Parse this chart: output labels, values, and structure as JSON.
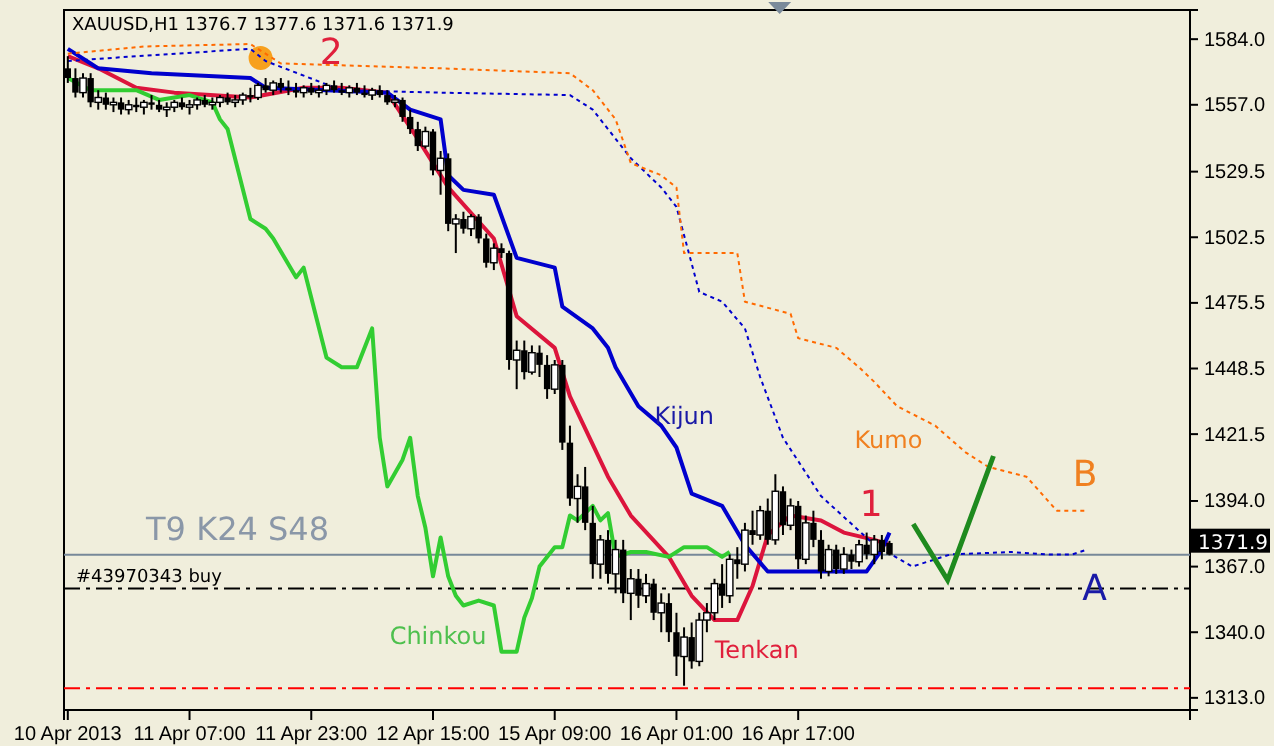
{
  "chart_data": {
    "type": "candlestick",
    "title": "XAUUSD,H1  1376.7 1377.6 1371.6 1371.9",
    "categories": [
      "10 Apr 2013",
      null,
      null,
      null,
      null,
      null,
      null,
      null,
      null,
      null,
      null,
      null,
      null,
      null,
      null,
      null,
      "11 Apr 07:00",
      null,
      null,
      null,
      null,
      null,
      null,
      null,
      null,
      null,
      null,
      null,
      null,
      null,
      null,
      null,
      "11 Apr 23:00",
      null,
      null,
      null,
      null,
      null,
      null,
      null,
      null,
      null,
      null,
      null,
      null,
      null,
      null,
      null,
      "12 Apr 15:00",
      null,
      null,
      null,
      null,
      null,
      null,
      null,
      null,
      null,
      null,
      null,
      null,
      null,
      null,
      null,
      "15 Apr 09:00",
      null,
      null,
      null,
      null,
      null,
      null,
      null,
      null,
      null,
      null,
      null,
      null,
      null,
      null,
      null,
      "16 Apr 01:00",
      null,
      null,
      null,
      null,
      null,
      null,
      null,
      null,
      null,
      null,
      null,
      null,
      null,
      null,
      null,
      "16 Apr 17:00",
      null,
      null,
      null,
      null,
      null,
      null,
      null,
      null,
      null,
      null,
      null,
      null,
      null,
      null,
      null,
      null,
      null,
      null,
      null,
      null,
      null,
      null,
      null,
      null,
      null,
      null,
      null,
      null,
      null,
      null,
      null,
      null,
      null,
      null,
      null,
      null,
      null,
      null,
      null,
      null,
      null,
      null,
      null,
      null,
      null,
      null,
      null,
      null,
      null,
      null,
      null
    ],
    "ohlc": [
      [
        1572,
        1577,
        1566,
        1568
      ],
      [
        1568,
        1572,
        1560,
        1562
      ],
      [
        1562,
        1570,
        1560,
        1568
      ],
      [
        1568,
        1570,
        1556,
        1558
      ],
      [
        1558,
        1563,
        1555,
        1560
      ],
      [
        1560,
        1562,
        1555,
        1557
      ],
      [
        1557,
        1560,
        1554,
        1558
      ],
      [
        1558,
        1560,
        1553,
        1555
      ],
      [
        1555,
        1559,
        1553,
        1557
      ],
      [
        1557,
        1560,
        1554,
        1556
      ],
      [
        1556,
        1559,
        1553,
        1558
      ],
      [
        1558,
        1561,
        1555,
        1557
      ],
      [
        1557,
        1559,
        1554,
        1555
      ],
      [
        1555,
        1558,
        1552,
        1556
      ],
      [
        1556,
        1559,
        1554,
        1558
      ],
      [
        1558,
        1560,
        1555,
        1556
      ],
      [
        1556,
        1559,
        1553,
        1557
      ],
      [
        1557,
        1560,
        1555,
        1559
      ],
      [
        1559,
        1561,
        1556,
        1557
      ],
      [
        1557,
        1560,
        1555,
        1558
      ],
      [
        1558,
        1561,
        1556,
        1560
      ],
      [
        1560,
        1562,
        1557,
        1558
      ],
      [
        1558,
        1561,
        1556,
        1559
      ],
      [
        1559,
        1562,
        1557,
        1561
      ],
      [
        1561,
        1564,
        1558,
        1560
      ],
      [
        1560,
        1566,
        1559,
        1565
      ],
      [
        1565,
        1568,
        1562,
        1563
      ],
      [
        1563,
        1567,
        1561,
        1566
      ],
      [
        1566,
        1568,
        1562,
        1564
      ],
      [
        1564,
        1567,
        1561,
        1563
      ],
      [
        1563,
        1566,
        1560,
        1562
      ],
      [
        1562,
        1565,
        1560,
        1564
      ],
      [
        1564,
        1566,
        1561,
        1562
      ],
      [
        1562,
        1565,
        1560,
        1563
      ],
      [
        1563,
        1566,
        1561,
        1565
      ],
      [
        1565,
        1567,
        1562,
        1563
      ],
      [
        1563,
        1566,
        1561,
        1562
      ],
      [
        1562,
        1565,
        1560,
        1564
      ],
      [
        1564,
        1566,
        1561,
        1562
      ],
      [
        1562,
        1565,
        1560,
        1561
      ],
      [
        1561,
        1564,
        1559,
        1563
      ],
      [
        1563,
        1565,
        1560,
        1561
      ],
      [
        1561,
        1563,
        1557,
        1558
      ],
      [
        1558,
        1561,
        1556,
        1559
      ],
      [
        1559,
        1560,
        1550,
        1552
      ],
      [
        1552,
        1555,
        1545,
        1547
      ],
      [
        1547,
        1550,
        1538,
        1540
      ],
      [
        1540,
        1548,
        1539,
        1546
      ],
      [
        1546,
        1547,
        1528,
        1530
      ],
      [
        1530,
        1538,
        1520,
        1535
      ],
      [
        1535,
        1537,
        1505,
        1508
      ],
      [
        1508,
        1512,
        1496,
        1510
      ],
      [
        1510,
        1513,
        1504,
        1506
      ],
      [
        1506,
        1512,
        1503,
        1511
      ],
      [
        1511,
        1512,
        1500,
        1502
      ],
      [
        1502,
        1504,
        1490,
        1492
      ],
      [
        1492,
        1500,
        1489,
        1498
      ],
      [
        1498,
        1500,
        1494,
        1496
      ],
      [
        1496,
        1497,
        1448,
        1452
      ],
      [
        1452,
        1460,
        1440,
        1456
      ],
      [
        1456,
        1460,
        1444,
        1447
      ],
      [
        1447,
        1458,
        1446,
        1455
      ],
      [
        1455,
        1458,
        1445,
        1450
      ],
      [
        1450,
        1454,
        1436,
        1440
      ],
      [
        1440,
        1452,
        1438,
        1450
      ],
      [
        1450,
        1452,
        1415,
        1418
      ],
      [
        1418,
        1425,
        1392,
        1395
      ],
      [
        1395,
        1405,
        1385,
        1400
      ],
      [
        1400,
        1408,
        1382,
        1385
      ],
      [
        1385,
        1392,
        1362,
        1368
      ],
      [
        1368,
        1380,
        1362,
        1378
      ],
      [
        1378,
        1382,
        1360,
        1364
      ],
      [
        1364,
        1378,
        1356,
        1374
      ],
      [
        1374,
        1378,
        1352,
        1356
      ],
      [
        1356,
        1366,
        1345,
        1362
      ],
      [
        1362,
        1366,
        1350,
        1355
      ],
      [
        1355,
        1364,
        1352,
        1360
      ],
      [
        1360,
        1362,
        1345,
        1348
      ],
      [
        1348,
        1356,
        1340,
        1352
      ],
      [
        1352,
        1356,
        1336,
        1340
      ],
      [
        1340,
        1348,
        1322,
        1330
      ],
      [
        1330,
        1342,
        1318,
        1338
      ],
      [
        1338,
        1344,
        1325,
        1328
      ],
      [
        1328,
        1348,
        1326,
        1345
      ],
      [
        1345,
        1352,
        1340,
        1348
      ],
      [
        1348,
        1362,
        1345,
        1360
      ],
      [
        1360,
        1368,
        1350,
        1355
      ],
      [
        1355,
        1372,
        1352,
        1370
      ],
      [
        1370,
        1375,
        1362,
        1368
      ],
      [
        1368,
        1385,
        1365,
        1382
      ],
      [
        1382,
        1390,
        1376,
        1380
      ],
      [
        1380,
        1392,
        1378,
        1390
      ],
      [
        1390,
        1395,
        1376,
        1378
      ],
      [
        1378,
        1405,
        1376,
        1398
      ],
      [
        1398,
        1400,
        1380,
        1384
      ],
      [
        1384,
        1395,
        1382,
        1392
      ],
      [
        1392,
        1394,
        1366,
        1370
      ],
      [
        1370,
        1388,
        1368,
        1385
      ],
      [
        1385,
        1390,
        1375,
        1378
      ],
      [
        1378,
        1382,
        1362,
        1365
      ],
      [
        1365,
        1376,
        1363,
        1374
      ],
      [
        1374,
        1376,
        1364,
        1366
      ],
      [
        1366,
        1375,
        1364,
        1372
      ],
      [
        1372,
        1374,
        1366,
        1369
      ],
      [
        1369,
        1378,
        1367,
        1376
      ],
      [
        1376,
        1381,
        1370,
        1372
      ],
      [
        1372,
        1380,
        1368,
        1378
      ],
      [
        1378,
        1380,
        1370,
        1373
      ],
      [
        1376.7,
        1377.6,
        1371.6,
        1371.9
      ],
      null,
      null,
      null,
      null,
      null,
      null,
      null,
      null,
      null,
      null,
      null,
      null,
      null,
      null,
      null,
      null,
      null,
      null,
      null,
      null,
      null,
      null,
      null,
      null,
      null,
      null,
      null,
      null,
      null,
      null,
      null,
      null,
      null,
      null,
      null,
      null,
      null,
      null,
      null
    ],
    "series": [
      {
        "type": "line",
        "color": "#dc143c",
        "values": [
          1577,
          null,
          null,
          null,
          1572,
          null,
          null,
          null,
          null,
          1564,
          null,
          null,
          null,
          null,
          1562,
          null,
          null,
          null,
          null,
          null,
          null,
          null,
          null,
          null,
          1560,
          null,
          null,
          null,
          null,
          null,
          null,
          1564,
          null,
          null,
          null,
          null,
          1564,
          null,
          null,
          null,
          null,
          null,
          1562,
          null,
          null,
          null,
          1543,
          null,
          null,
          null,
          1523,
          null,
          null,
          null,
          null,
          null,
          1502,
          null,
          null,
          1470,
          null,
          null,
          null,
          null,
          1457,
          null,
          1437,
          null,
          null,
          null,
          null,
          1404,
          null,
          null,
          1388,
          null,
          null,
          null,
          null,
          1371,
          null,
          null,
          1355,
          null,
          null,
          1345,
          null,
          null,
          1345,
          null,
          1359,
          null,
          1380,
          null,
          null,
          1388,
          null,
          null,
          null,
          1386,
          null,
          null,
          1381,
          null,
          null,
          null,
          1378,
          null,
          1376,
          null,
          null,
          null,
          null,
          null,
          null,
          null,
          null,
          null,
          null,
          null,
          null,
          null,
          null,
          null,
          null,
          null,
          null,
          null,
          null,
          null,
          null,
          null,
          null,
          null,
          null,
          null,
          null,
          null,
          null,
          null,
          null,
          null,
          null,
          null,
          null,
          null,
          null,
          null
        ]
      },
      {
        "type": "line",
        "color": "#0000cd",
        "values": [
          1580,
          null,
          null,
          1574,
          1572,
          null,
          null,
          null,
          null,
          null,
          null,
          1570,
          null,
          null,
          null,
          null,
          null,
          null,
          null,
          null,
          null,
          null,
          null,
          null,
          1568,
          null,
          1564,
          null,
          null,
          null,
          null,
          null,
          null,
          null,
          null,
          null,
          null,
          null,
          null,
          null,
          null,
          null,
          1562,
          null,
          null,
          1555,
          null,
          null,
          null,
          1551,
          1528,
          null,
          1522,
          null,
          null,
          null,
          1520,
          null,
          null,
          1494,
          null,
          null,
          null,
          null,
          1490,
          1474,
          null,
          null,
          null,
          1465,
          null,
          1457,
          1449,
          null,
          null,
          1433,
          null,
          null,
          1425,
          null,
          1416,
          null,
          1397,
          null,
          null,
          null,
          1392,
          null,
          null,
          1376,
          null,
          null,
          1365,
          null,
          null,
          null,
          null,
          null,
          null,
          null,
          null,
          null,
          null,
          null,
          null,
          1365,
          null,
          1374,
          1381,
          null,
          null,
          null,
          null,
          null,
          null,
          null,
          null,
          null,
          null,
          null,
          null,
          null,
          null,
          null,
          null,
          null,
          null,
          null,
          null,
          null,
          null,
          null,
          null,
          null,
          null,
          null,
          null,
          null,
          null,
          null,
          null,
          null,
          null,
          null,
          null,
          null,
          null,
          null
        ]
      },
      {
        "type": "line",
        "color": "#32cd32",
        "values": [
          1568,
          null,
          null,
          1563,
          null,
          null,
          null,
          null,
          null,
          1563,
          null,
          null,
          1559,
          null,
          null,
          null,
          1561,
          null,
          null,
          1558,
          1551,
          1547,
          null,
          null,
          1510,
          null,
          1506,
          1502,
          null,
          null,
          1486,
          1490,
          null,
          null,
          1453,
          null,
          1449,
          null,
          1449,
          null,
          1465,
          1420,
          1400,
          null,
          1411,
          1420,
          1396,
          1383,
          1363,
          1379,
          1363,
          1355,
          1351,
          null,
          1353,
          null,
          1351,
          1332,
          null,
          1332,
          1346,
          1354,
          1367,
          null,
          1375,
          1375,
          1388,
          1386,
          null,
          1392,
          1386,
          1389,
          1371,
          null,
          1373,
          null,
          1373,
          null,
          null,
          1371,
          null,
          1375,
          null,
          null,
          1375,
          null,
          1371,
          1373,
          null,
          null,
          null,
          null,
          null,
          null,
          null,
          null,
          null,
          null,
          null,
          null,
          null,
          null,
          null,
          null,
          null,
          null,
          null,
          null,
          null,
          null,
          null,
          null,
          null,
          null,
          null,
          null,
          null,
          null,
          null,
          null,
          null,
          null,
          null,
          null,
          null,
          null,
          null,
          null,
          null,
          null,
          null,
          null,
          null,
          null,
          null,
          null,
          null,
          null,
          null,
          null,
          null,
          null,
          null,
          null,
          null,
          null,
          null,
          null
        ]
      },
      {
        "type": "line",
        "color": "#0000cd",
        "line_style": "dotted",
        "values": [
          1575,
          null,
          null,
          null,
          null,
          null,
          null,
          null,
          null,
          1577,
          null,
          null,
          null,
          null,
          null,
          null,
          null,
          null,
          null,
          null,
          null,
          null,
          null,
          null,
          1580,
          null,
          1575,
          null,
          null,
          null,
          null,
          null,
          null,
          null,
          null,
          null,
          1563,
          null,
          null,
          null,
          null,
          null,
          null,
          null,
          null,
          null,
          null,
          null,
          null,
          1562,
          null,
          null,
          null,
          null,
          null,
          null,
          null,
          null,
          null,
          null,
          null,
          null,
          null,
          null,
          null,
          null,
          1561,
          null,
          null,
          1555,
          null,
          null,
          1543,
          null,
          1535,
          null,
          null,
          null,
          1523,
          null,
          1515,
          null,
          null,
          1480,
          null,
          null,
          1476,
          null,
          null,
          1465,
          null,
          1445,
          null,
          null,
          1420,
          null,
          null,
          null,
          null,
          1396,
          null,
          null,
          null,
          null,
          null,
          null,
          1376,
          null,
          null,
          null,
          null,
          1367,
          null,
          null,
          null,
          null,
          1372,
          null,
          null,
          null,
          null,
          null,
          null,
          null,
          1373,
          null,
          null,
          null,
          null,
          1372,
          null,
          null,
          1372,
          null,
          1374,
          null,
          null,
          null,
          null,
          null,
          null,
          null,
          null,
          null,
          null,
          null,
          null,
          null
        ]
      },
      {
        "type": "line",
        "color": "#ff6a00",
        "line_style": "dotted",
        "values": [
          1578,
          null,
          null,
          null,
          null,
          null,
          null,
          null,
          null,
          null,
          1581,
          null,
          null,
          null,
          null,
          null,
          null,
          null,
          null,
          null,
          null,
          null,
          null,
          null,
          1582,
          null,
          null,
          null,
          1574,
          null,
          null,
          null,
          null,
          null,
          null,
          null,
          null,
          null,
          null,
          null,
          null,
          null,
          null,
          null,
          null,
          null,
          null,
          null,
          null,
          1572,
          null,
          null,
          null,
          null,
          null,
          null,
          null,
          null,
          null,
          null,
          null,
          null,
          null,
          null,
          null,
          null,
          1570,
          null,
          null,
          1563,
          null,
          null,
          1551,
          null,
          1533,
          null,
          null,
          null,
          1528,
          null,
          1523,
          1496,
          null,
          null,
          null,
          null,
          null,
          null,
          1496,
          1476,
          null,
          null,
          null,
          null,
          null,
          1471,
          1461,
          null,
          null,
          null,
          null,
          1457,
          null,
          null,
          1449,
          null,
          1443,
          null,
          null,
          1433,
          null,
          null,
          null,
          null,
          1425,
          null,
          null,
          null,
          1414,
          null,
          null,
          1408,
          null,
          null,
          null,
          null,
          1404,
          null,
          null,
          null,
          1390,
          null,
          null,
          null,
          1390,
          null,
          null,
          null,
          null,
          null,
          null,
          null,
          null,
          null,
          null,
          null,
          null,
          null
        ]
      }
    ],
    "ylim": [
      1308,
      1596
    ],
    "yticks": [
      {
        "value": 1313,
        "label": "1313.0"
      },
      {
        "value": 1340,
        "label": "1340.0"
      },
      {
        "value": 1367,
        "label": "1367.0"
      },
      {
        "value": 1394,
        "label": "1394.0"
      },
      {
        "value": 1421.5,
        "label": "1421.5"
      },
      {
        "value": 1448.5,
        "label": "1448.5"
      },
      {
        "value": 1475.5,
        "label": "1475.5"
      },
      {
        "value": 1502.5,
        "label": "1502.5"
      },
      {
        "value": 1529.5,
        "label": "1529.5"
      },
      {
        "value": 1557,
        "label": "1557.0"
      },
      {
        "value": 1584,
        "label": "1584.0"
      }
    ],
    "ref_lines": [
      {
        "axis": "y",
        "value": 1371.9,
        "label": "1371.9",
        "color": "#778899",
        "line_style": "solid"
      },
      {
        "axis": "y",
        "value": 1358,
        "label": "#43970343 buy",
        "color": "#000000",
        "line_style": "dashed"
      },
      {
        "axis": "y",
        "value": 1317,
        "color": "#ff0000",
        "line_style": "dashed"
      }
    ],
    "annotations": [
      "2",
      "1",
      "Kijun",
      "Kumo",
      "Tenkan",
      "Chinkou",
      "B",
      "A",
      "T9 K24 S48"
    ],
    "grid": false
  }
}
